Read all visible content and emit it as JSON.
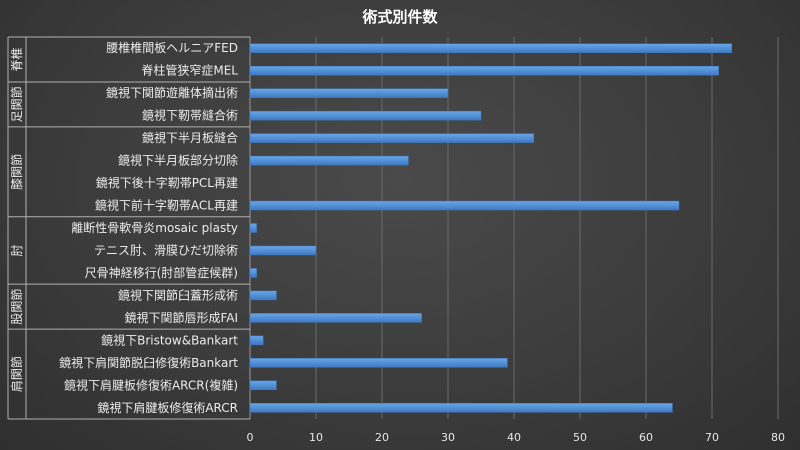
{
  "chart_data": {
    "type": "bar",
    "orientation": "horizontal",
    "title": "術式別件数",
    "xlim": [
      0,
      80
    ],
    "xticks": [
      0,
      10,
      20,
      30,
      40,
      50,
      60,
      70,
      80
    ],
    "grid": true,
    "bar_color": "#4f8fd6",
    "groups": [
      {
        "name": "脊椎",
        "items": [
          {
            "label": "腰椎椎間板ヘルニアFED",
            "value": 73
          },
          {
            "label": "脊柱管狭窄症MEL",
            "value": 71
          }
        ]
      },
      {
        "name": "足関節",
        "items": [
          {
            "label": "鏡視下関節遊離体摘出術",
            "value": 30
          },
          {
            "label": "鏡視下靭帯縫合術",
            "value": 35
          }
        ]
      },
      {
        "name": "膝関節",
        "items": [
          {
            "label": "鏡視下半月板縫合",
            "value": 43
          },
          {
            "label": "鏡視下半月板部分切除",
            "value": 24
          },
          {
            "label": "鏡視下後十字靭帯PCL再建",
            "value": 0
          },
          {
            "label": "鏡視下前十字靭帯ACL再建",
            "value": 65
          }
        ]
      },
      {
        "name": "肘",
        "items": [
          {
            "label": "離断性骨軟骨炎mosaic plasty",
            "value": 1
          },
          {
            "label": "テニス肘、滑膜ひだ切除術",
            "value": 10
          },
          {
            "label": "尺骨神経移行(肘部管症候群)",
            "value": 1
          }
        ]
      },
      {
        "name": "股関節",
        "items": [
          {
            "label": "鏡視下関節臼蓋形成術",
            "value": 4
          },
          {
            "label": "鏡視下関節唇形成FAI",
            "value": 26
          }
        ]
      },
      {
        "name": "肩関節",
        "items": [
          {
            "label": "鏡視下Bristow&Bankart",
            "value": 2
          },
          {
            "label": "鏡視下肩関節脱臼修復術Bankart",
            "value": 39
          },
          {
            "label": "鏡視下肩腱板修復術ARCR(複雑)",
            "value": 4
          },
          {
            "label": "鏡視下肩腱板修復術ARCR",
            "value": 64
          }
        ]
      }
    ]
  }
}
